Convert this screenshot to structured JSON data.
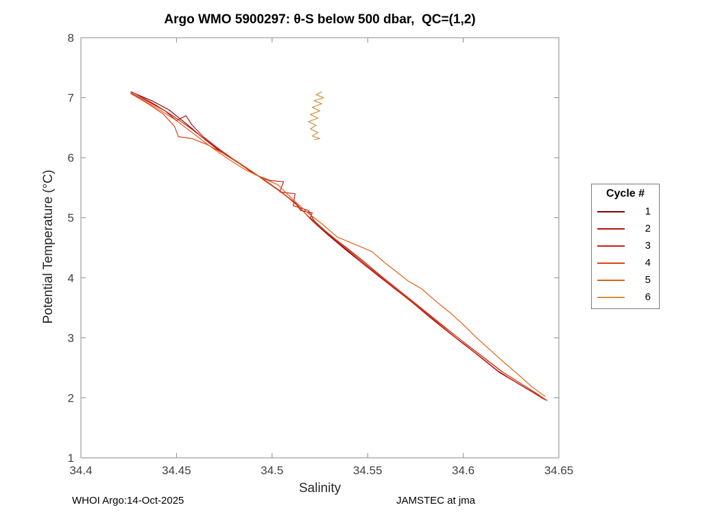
{
  "footer": {
    "left": "WHOI Argo:14-Oct-2025",
    "right": "JAMSTEC at jma"
  },
  "chart_data": {
    "type": "line",
    "title": "Argo WMO 5900297: θ-S below 500 dbar,  QC=(1,2)",
    "xlabel": "Salinity",
    "ylabel": "Potential Temperature (°C)",
    "xlim": [
      34.4,
      34.65
    ],
    "ylim": [
      1,
      8
    ],
    "xticks": [
      34.4,
      34.45,
      34.5,
      34.55,
      34.6,
      34.65
    ],
    "xtick_labels": [
      "34.4",
      "34.45",
      "34.5",
      "34.55",
      "34.6",
      "34.65"
    ],
    "yticks": [
      1,
      2,
      3,
      4,
      5,
      6,
      7,
      8
    ],
    "ytick_labels": [
      "1",
      "2",
      "3",
      "4",
      "5",
      "6",
      "7",
      "8"
    ],
    "grid": false,
    "legend_title": "Cycle #",
    "legend_position": "right-outside",
    "axis_color": "#8a8a8a",
    "tick_label_color": "#404040",
    "series": [
      {
        "name": "1",
        "color": "#7f0000",
        "points": [
          [
            34.426,
            7.1
          ],
          [
            34.437,
            6.95
          ],
          [
            34.446,
            6.8
          ],
          [
            34.455,
            6.57
          ],
          [
            34.465,
            6.3
          ],
          [
            34.473,
            6.1
          ],
          [
            34.481,
            5.95
          ],
          [
            34.489,
            5.78
          ],
          [
            34.497,
            5.6
          ],
          [
            34.505,
            5.42
          ],
          [
            34.513,
            5.22
          ],
          [
            34.521,
            4.95
          ],
          [
            34.529,
            4.72
          ],
          [
            34.538,
            4.48
          ],
          [
            34.547,
            4.25
          ],
          [
            34.556,
            4.02
          ],
          [
            34.565,
            3.8
          ],
          [
            34.574,
            3.57
          ],
          [
            34.583,
            3.33
          ],
          [
            34.592,
            3.1
          ],
          [
            34.601,
            2.88
          ],
          [
            34.61,
            2.65
          ],
          [
            34.619,
            2.42
          ],
          [
            34.628,
            2.25
          ],
          [
            34.637,
            2.08
          ],
          [
            34.643,
            1.97
          ]
        ]
      },
      {
        "name": "2",
        "color": "#b31212",
        "points": [
          [
            34.426,
            7.08
          ],
          [
            34.436,
            6.92
          ],
          [
            34.444,
            6.78
          ],
          [
            34.45,
            6.62
          ],
          [
            34.455,
            6.7
          ],
          [
            34.458,
            6.55
          ],
          [
            34.464,
            6.35
          ],
          [
            34.472,
            6.15
          ],
          [
            34.48,
            5.97
          ],
          [
            34.488,
            5.8
          ],
          [
            34.496,
            5.63
          ],
          [
            34.504,
            5.45
          ],
          [
            34.512,
            5.25
          ],
          [
            34.515,
            5.12
          ],
          [
            34.521,
            5.08
          ],
          [
            34.52,
            5.0
          ],
          [
            34.528,
            4.76
          ],
          [
            34.537,
            4.52
          ],
          [
            34.546,
            4.28
          ],
          [
            34.555,
            4.05
          ],
          [
            34.564,
            3.82
          ],
          [
            34.573,
            3.6
          ],
          [
            34.582,
            3.36
          ],
          [
            34.591,
            3.13
          ],
          [
            34.6,
            2.9
          ],
          [
            34.609,
            2.68
          ],
          [
            34.618,
            2.45
          ],
          [
            34.627,
            2.27
          ],
          [
            34.636,
            2.1
          ],
          [
            34.642,
            1.98
          ]
        ]
      },
      {
        "name": "3",
        "color": "#cc1c10",
        "points": [
          [
            34.427,
            7.09
          ],
          [
            34.438,
            6.9
          ],
          [
            34.448,
            6.7
          ],
          [
            34.457,
            6.5
          ],
          [
            34.466,
            6.28
          ],
          [
            34.475,
            6.06
          ],
          [
            34.483,
            5.9
          ],
          [
            34.491,
            5.72
          ],
          [
            34.499,
            5.62
          ],
          [
            34.506,
            5.6
          ],
          [
            34.504,
            5.43
          ],
          [
            34.512,
            5.4
          ],
          [
            34.511,
            5.2
          ],
          [
            34.519,
            5.12
          ],
          [
            34.522,
            4.95
          ],
          [
            34.53,
            4.72
          ],
          [
            34.539,
            4.5
          ],
          [
            34.548,
            4.27
          ],
          [
            34.557,
            4.03
          ],
          [
            34.566,
            3.8
          ],
          [
            34.575,
            3.57
          ],
          [
            34.584,
            3.34
          ],
          [
            34.593,
            3.11
          ],
          [
            34.602,
            2.88
          ],
          [
            34.611,
            2.66
          ],
          [
            34.62,
            2.44
          ],
          [
            34.629,
            2.26
          ],
          [
            34.638,
            2.08
          ],
          [
            34.643,
            1.96
          ]
        ]
      },
      {
        "name": "4",
        "color": "#d84315",
        "points": [
          [
            34.426,
            7.07
          ],
          [
            34.435,
            6.9
          ],
          [
            34.443,
            6.73
          ],
          [
            34.449,
            6.52
          ],
          [
            34.451,
            6.35
          ],
          [
            34.458,
            6.32
          ],
          [
            34.466,
            6.22
          ],
          [
            34.474,
            6.08
          ],
          [
            34.482,
            5.93
          ],
          [
            34.49,
            5.76
          ],
          [
            34.498,
            5.58
          ],
          [
            34.506,
            5.4
          ],
          [
            34.514,
            5.18
          ],
          [
            34.522,
            4.93
          ],
          [
            34.531,
            4.7
          ],
          [
            34.54,
            4.46
          ],
          [
            34.549,
            4.22
          ],
          [
            34.558,
            3.99
          ],
          [
            34.567,
            3.76
          ],
          [
            34.576,
            3.53
          ],
          [
            34.585,
            3.3
          ],
          [
            34.594,
            3.08
          ],
          [
            34.603,
            2.86
          ],
          [
            34.612,
            2.64
          ],
          [
            34.621,
            2.42
          ],
          [
            34.63,
            2.24
          ],
          [
            34.639,
            2.06
          ],
          [
            34.644,
            1.95
          ]
        ]
      },
      {
        "name": "5",
        "color": "#e26012",
        "points": [
          [
            34.427,
            7.05
          ],
          [
            34.438,
            6.86
          ],
          [
            34.449,
            6.64
          ],
          [
            34.459,
            6.4
          ],
          [
            34.468,
            6.18
          ],
          [
            34.477,
            5.98
          ],
          [
            34.486,
            5.8
          ],
          [
            34.495,
            5.66
          ],
          [
            34.503,
            5.55
          ],
          [
            34.511,
            5.3
          ],
          [
            34.518,
            5.1
          ],
          [
            34.526,
            4.9
          ],
          [
            34.534,
            4.68
          ],
          [
            34.543,
            4.56
          ],
          [
            34.552,
            4.44
          ],
          [
            34.559,
            4.25
          ],
          [
            34.565,
            4.1
          ],
          [
            34.571,
            3.95
          ],
          [
            34.578,
            3.82
          ],
          [
            34.586,
            3.6
          ],
          [
            34.593,
            3.42
          ],
          [
            34.6,
            3.22
          ],
          [
            34.607,
            3.0
          ],
          [
            34.614,
            2.8
          ],
          [
            34.621,
            2.6
          ],
          [
            34.629,
            2.38
          ],
          [
            34.636,
            2.18
          ],
          [
            34.643,
            2.02
          ]
        ]
      },
      {
        "name": "6",
        "color": "#d1903c",
        "points": [
          [
            34.526,
            7.1
          ],
          [
            34.523,
            7.05
          ],
          [
            34.527,
            7.0
          ],
          [
            34.522,
            6.95
          ],
          [
            34.526,
            6.9
          ],
          [
            34.521,
            6.84
          ],
          [
            34.525,
            6.78
          ],
          [
            34.52,
            6.72
          ],
          [
            34.524,
            6.66
          ],
          [
            34.519,
            6.6
          ],
          [
            34.523,
            6.54
          ],
          [
            34.52,
            6.48
          ],
          [
            34.524,
            6.42
          ],
          [
            34.521,
            6.36
          ],
          [
            34.525,
            6.32
          ],
          [
            34.522,
            6.3
          ]
        ]
      }
    ]
  }
}
